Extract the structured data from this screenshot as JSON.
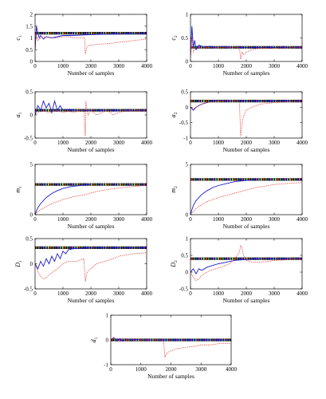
{
  "figure": {
    "colors": {
      "estimate": "#1a1acc",
      "reference": "#e0302a",
      "true_band_dark": "#111111",
      "true_band_colors": [
        "#d33",
        "#2a2",
        "#33c",
        "#c3c",
        "#3cc",
        "#cc3"
      ]
    },
    "x_axis_label": "Number of samples"
  },
  "chart_data": [
    {
      "type": "line",
      "id": "c1",
      "ylabel": "c1",
      "ylabel_base": "c",
      "ylabel_sub": "1",
      "xlabel": "Number of samples",
      "xlim": [
        0,
        4000
      ],
      "ylim": [
        0,
        2
      ],
      "xticks": [
        "0",
        "1000",
        "2000",
        "3000",
        "4000"
      ],
      "yticks": [
        "0",
        "0.5",
        "1",
        "1.5",
        "2"
      ],
      "true_value": 1.2,
      "series": [
        {
          "x": [
            0,
            50,
            100,
            150,
            200,
            300,
            400,
            600,
            800,
            1000,
            1300,
            1600,
            2000,
            2500,
            3000,
            3500,
            4000
          ],
          "y": [
            0.5,
            1.5,
            1.2,
            1.0,
            1.1,
            0.95,
            1.05,
            1.0,
            1.05,
            1.1,
            1.1,
            1.12,
            1.14,
            1.16,
            1.17,
            1.18,
            1.18
          ]
        },
        {
          "x": [
            0,
            50,
            100,
            200,
            400,
            600,
            800,
            1000,
            1200,
            1400,
            1600,
            1780,
            1800,
            1850,
            1900,
            2000,
            2200,
            2500,
            2800,
            3000,
            3300,
            3600,
            4000
          ],
          "y": [
            0.5,
            1.2,
            0.9,
            1.0,
            1.05,
            1.0,
            1.0,
            1.05,
            1.05,
            1.0,
            1.0,
            1.0,
            0.3,
            0.6,
            0.65,
            0.7,
            0.72,
            0.75,
            0.78,
            0.82,
            0.85,
            0.9,
            0.95
          ]
        }
      ]
    },
    {
      "type": "line",
      "id": "c2",
      "ylabel": "c2",
      "ylabel_base": "c",
      "ylabel_sub": "2",
      "xlabel": "Number of samples",
      "xlim": [
        0,
        4000
      ],
      "ylim": [
        0,
        1
      ],
      "xticks": [
        "0",
        "1000",
        "2000",
        "3000",
        "4000"
      ],
      "yticks": [
        "0",
        "0.5",
        "1"
      ],
      "true_value": 0.3,
      "series": [
        {
          "x": [
            0,
            50,
            100,
            150,
            200,
            300,
            500,
            700,
            900,
            1200,
            1500,
            2000,
            2500,
            3000,
            4000
          ],
          "y": [
            0.1,
            0.75,
            0.3,
            0.45,
            0.25,
            0.35,
            0.3,
            0.32,
            0.3,
            0.31,
            0.3,
            0.3,
            0.3,
            0.3,
            0.3
          ]
        },
        {
          "x": [
            0,
            50,
            100,
            200,
            400,
            600,
            800,
            1000,
            1200,
            1500,
            1750,
            1800,
            1850,
            1900,
            2000,
            2200,
            2500,
            3000,
            3500,
            4000
          ],
          "y": [
            0.1,
            0.5,
            0.2,
            0.3,
            0.28,
            0.3,
            0.29,
            0.3,
            0.3,
            0.3,
            0.3,
            0.05,
            0.2,
            0.15,
            0.2,
            0.25,
            0.28,
            0.28,
            0.29,
            0.3
          ]
        }
      ]
    },
    {
      "type": "line",
      "id": "a1",
      "ylabel": "a1",
      "ylabel_base": "a",
      "ylabel_sub": "1",
      "xlabel": "Number of samples",
      "xlim": [
        0,
        4000
      ],
      "ylim": [
        -0.5,
        0.5
      ],
      "xticks": [
        "0",
        "1000",
        "2000",
        "3000",
        "4000"
      ],
      "yticks": [
        "-0.5",
        "0",
        "0.5"
      ],
      "true_value": 0.1,
      "series": [
        {
          "x": [
            0,
            100,
            200,
            300,
            400,
            500,
            600,
            700,
            800,
            900,
            1000,
            1200,
            1500,
            1800,
            2000,
            2500,
            3000,
            3500,
            4000
          ],
          "y": [
            0.0,
            0.2,
            0.1,
            0.3,
            0.15,
            0.25,
            0.05,
            0.3,
            0.1,
            0.2,
            0.1,
            0.12,
            0.1,
            0.1,
            0.1,
            0.1,
            0.1,
            0.1,
            0.1
          ]
        },
        {
          "x": [
            0,
            100,
            300,
            500,
            800,
            1000,
            1200,
            1400,
            1600,
            1750,
            1800,
            1820,
            1850,
            1900,
            2000,
            2200,
            2400,
            2600,
            2800,
            3000,
            3300,
            3600,
            4000
          ],
          "y": [
            0.0,
            0.05,
            0.1,
            0.05,
            0.1,
            0.05,
            0.08,
            0.05,
            0.1,
            0.1,
            -0.45,
            0.3,
            0.15,
            0.0,
            0.1,
            0.0,
            0.05,
            0.1,
            0.0,
            0.05,
            0.1,
            0.08,
            0.1
          ]
        }
      ]
    },
    {
      "type": "line",
      "id": "a2",
      "ylabel": "a2",
      "ylabel_base": "a",
      "ylabel_sub": "2",
      "xlabel": "Number of samples",
      "xlim": [
        0,
        4000
      ],
      "ylim": [
        -1,
        0.5
      ],
      "xticks": [
        "0",
        "1000",
        "2000",
        "3000",
        "4000"
      ],
      "yticks": [
        "-1",
        "-0.5",
        "0",
        "0.5"
      ],
      "true_value": 0.2,
      "series": [
        {
          "x": [
            0,
            100,
            200,
            300,
            400,
            600,
            800,
            1000,
            1300,
            1600,
            2000,
            2500,
            3000,
            4000
          ],
          "y": [
            0.0,
            -0.1,
            0.0,
            0.05,
            0.1,
            0.15,
            0.2,
            0.22,
            0.2,
            0.2,
            0.2,
            0.2,
            0.2,
            0.2
          ]
        },
        {
          "x": [
            0,
            100,
            200,
            400,
            600,
            800,
            1000,
            1200,
            1500,
            1750,
            1800,
            1850,
            1900,
            2000,
            2200,
            2500,
            3000,
            3500,
            4000
          ],
          "y": [
            0.0,
            -0.05,
            0.0,
            0.1,
            0.15,
            0.2,
            0.2,
            0.2,
            0.2,
            0.2,
            -0.95,
            -0.5,
            -0.3,
            -0.1,
            0.0,
            0.1,
            0.15,
            0.18,
            0.2
          ]
        }
      ]
    },
    {
      "type": "line",
      "id": "m1",
      "ylabel": "m1",
      "ylabel_base": "m",
      "ylabel_sub": "1",
      "xlabel": "Number of samples",
      "xlim": [
        0,
        4000
      ],
      "ylim": [
        0,
        5
      ],
      "xticks": [
        "0",
        "1000",
        "2000",
        "3000",
        "4000"
      ],
      "yticks": [
        "0",
        "5"
      ],
      "true_value": 3.0,
      "series": [
        {
          "x": [
            0,
            50,
            100,
            200,
            400,
            600,
            800,
            1000,
            1300,
            1600,
            2000
          ],
          "y": [
            0.0,
            0.4,
            0.7,
            1.1,
            1.7,
            2.1,
            2.4,
            2.6,
            2.8,
            2.9,
            3.0
          ]
        },
        {
          "x": [
            0,
            100,
            200,
            400,
            600,
            800,
            1000,
            1400,
            1800,
            2200,
            2600,
            3000,
            3500,
            4000
          ],
          "y": [
            0.0,
            0.3,
            0.5,
            0.8,
            1.1,
            1.3,
            1.5,
            1.8,
            2.0,
            2.3,
            2.5,
            2.65,
            2.8,
            2.9
          ]
        }
      ]
    },
    {
      "type": "line",
      "id": "m2",
      "ylabel": "m2",
      "ylabel_base": "m",
      "ylabel_sub": "2",
      "xlabel": "Number of samples",
      "xlim": [
        0,
        4000
      ],
      "ylim": [
        0,
        5
      ],
      "xticks": [
        "0",
        "1000",
        "2000",
        "3000",
        "4000"
      ],
      "yticks": [
        "0",
        "5"
      ],
      "true_value": 3.5,
      "series": [
        {
          "x": [
            0,
            50,
            100,
            200,
            400,
            600,
            800,
            1000,
            1300,
            1600,
            2000,
            2300
          ],
          "y": [
            0.0,
            0.5,
            0.9,
            1.4,
            2.0,
            2.4,
            2.7,
            2.9,
            3.1,
            3.3,
            3.4,
            3.5
          ]
        },
        {
          "x": [
            0,
            100,
            200,
            400,
            600,
            800,
            1000,
            1400,
            1800,
            2200,
            2600,
            3000,
            3500,
            4000
          ],
          "y": [
            0.0,
            0.3,
            0.6,
            1.0,
            1.3,
            1.5,
            1.7,
            2.0,
            2.3,
            2.6,
            2.8,
            3.0,
            3.1,
            3.2
          ]
        }
      ]
    },
    {
      "type": "line",
      "id": "D1",
      "ylabel": "D1",
      "ylabel_base": "D",
      "ylabel_sub": "1",
      "xlabel": "Number of samples",
      "xlim": [
        0,
        4000
      ],
      "ylim": [
        -0.5,
        0.5
      ],
      "xticks": [
        "0",
        "1000",
        "2000",
        "3000",
        "4000"
      ],
      "yticks": [
        "-0.5",
        "0",
        "0.5"
      ],
      "true_value": 0.32,
      "series": [
        {
          "x": [
            0,
            100,
            200,
            300,
            400,
            500,
            600,
            700,
            800,
            900,
            1000,
            1100,
            1200,
            1400,
            1600,
            1800,
            2000,
            2500,
            3000,
            4000
          ],
          "y": [
            0.0,
            -0.1,
            0.05,
            -0.05,
            0.1,
            0.0,
            0.15,
            0.05,
            0.2,
            0.1,
            0.25,
            0.2,
            0.28,
            0.3,
            0.3,
            0.32,
            0.32,
            0.32,
            0.32,
            0.32
          ]
        },
        {
          "x": [
            0,
            100,
            200,
            300,
            400,
            500,
            600,
            800,
            1000,
            1200,
            1500,
            1750,
            1800,
            1850,
            1900,
            2000,
            2200,
            2500,
            2800,
            3000,
            3300,
            3600,
            4000
          ],
          "y": [
            0.0,
            -0.15,
            -0.25,
            -0.3,
            -0.28,
            -0.22,
            -0.18,
            -0.1,
            0.0,
            0.05,
            0.05,
            0.1,
            -0.35,
            -0.2,
            -0.15,
            -0.1,
            0.0,
            0.05,
            0.1,
            0.15,
            0.18,
            0.2,
            0.22
          ]
        }
      ]
    },
    {
      "type": "line",
      "id": "D2",
      "ylabel": "D2",
      "ylabel_base": "D",
      "ylabel_sub": "2",
      "xlabel": "Number of samples",
      "xlim": [
        0,
        4000
      ],
      "ylim": [
        -0.5,
        1
      ],
      "xticks": [
        "0",
        "1000",
        "2000",
        "3000",
        "4000"
      ],
      "yticks": [
        "-0.5",
        "0",
        "0.5",
        "1"
      ],
      "true_value": 0.4,
      "series": [
        {
          "x": [
            0,
            100,
            200,
            300,
            400,
            600,
            800,
            1000,
            1300,
            1600,
            2000,
            2400,
            3000,
            4000
          ],
          "y": [
            0.0,
            0.1,
            -0.05,
            0.1,
            0.05,
            0.15,
            0.2,
            0.25,
            0.3,
            0.35,
            0.38,
            0.4,
            0.4,
            0.4
          ]
        },
        {
          "x": [
            0,
            100,
            200,
            300,
            400,
            500,
            700,
            900,
            1100,
            1400,
            1600,
            1750,
            1800,
            1850,
            1900,
            2000,
            2200,
            2500,
            2800,
            3000,
            3300,
            3600,
            4000
          ],
          "y": [
            0.0,
            -0.15,
            -0.25,
            -0.2,
            -0.1,
            -0.05,
            0.05,
            0.1,
            0.15,
            0.25,
            0.4,
            0.6,
            0.8,
            0.7,
            0.5,
            0.35,
            0.3,
            0.3,
            0.32,
            0.35,
            0.36,
            0.38,
            0.4
          ]
        }
      ]
    },
    {
      "type": "line",
      "id": "d1",
      "ylabel": "d1",
      "ylabel_base": "d",
      "ylabel_sub": "1",
      "xlabel": "Number of samples",
      "xlim": [
        0,
        4000
      ],
      "ylim": [
        -1,
        1
      ],
      "xticks": [
        "0",
        "1000",
        "2000",
        "3000",
        "4000"
      ],
      "yticks": [
        "-1",
        "0",
        "1"
      ],
      "true_value": 0.0,
      "series": [
        {
          "x": [
            0,
            100,
            200,
            300,
            400,
            500,
            600,
            800,
            1000,
            1200,
            1500,
            2000,
            2500,
            3000,
            4000
          ],
          "y": [
            0.0,
            0.1,
            -0.05,
            0.05,
            -0.05,
            0.05,
            0.0,
            0.02,
            0.0,
            0.0,
            0.0,
            0.0,
            0.0,
            0.0,
            0.0
          ]
        },
        {
          "x": [
            0,
            100,
            200,
            400,
            600,
            800,
            1000,
            1200,
            1500,
            1750,
            1800,
            1850,
            1900,
            2000,
            2200,
            2500,
            2800,
            3000,
            3300,
            3600,
            4000
          ],
          "y": [
            0.0,
            0.1,
            -0.05,
            0.05,
            0.0,
            0.05,
            0.0,
            0.0,
            0.0,
            0.0,
            -0.7,
            -0.55,
            -0.5,
            -0.45,
            -0.35,
            -0.3,
            -0.25,
            -0.2,
            -0.2,
            -0.15,
            -0.15
          ]
        }
      ]
    }
  ]
}
